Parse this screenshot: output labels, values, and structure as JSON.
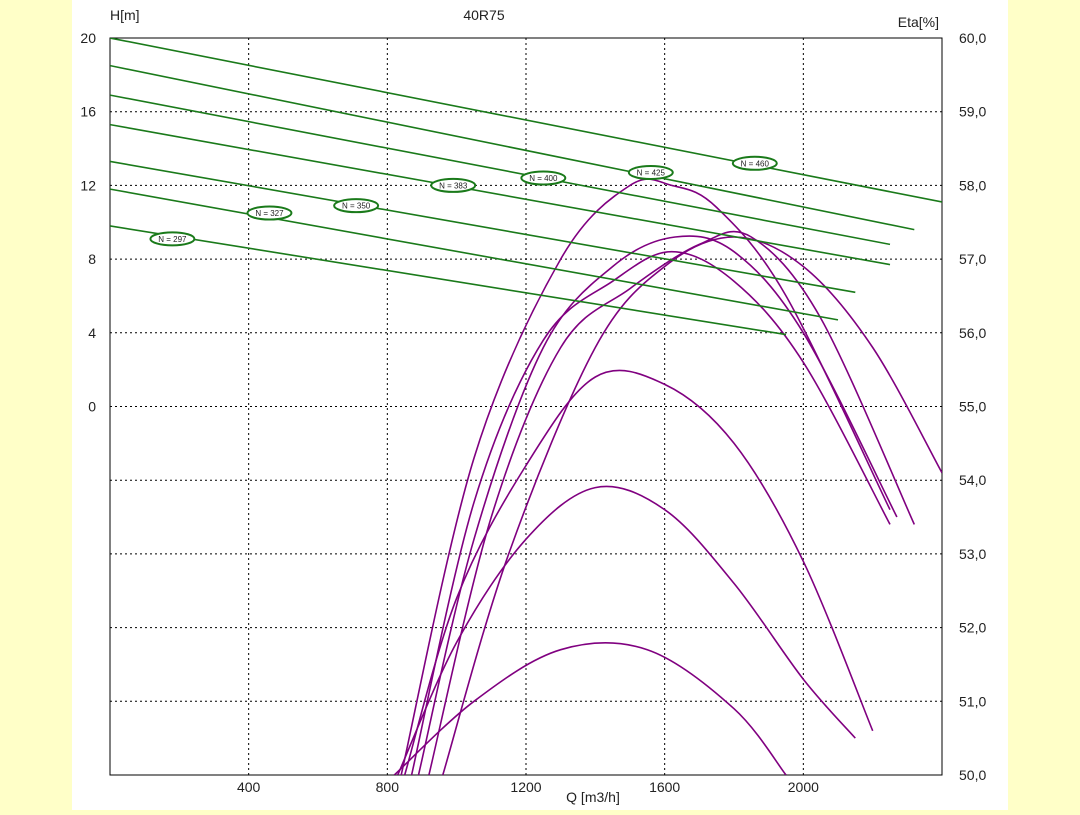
{
  "chart_data": {
    "type": "line",
    "title": "40R75",
    "xlabel": "Q [m3/h]",
    "ylabel_left": "H[m]",
    "ylabel_right": "Eta[%]",
    "xlim": [
      0,
      2400
    ],
    "xticks": [
      400,
      800,
      1200,
      1600,
      2000
    ],
    "ylim_left": [
      -20,
      20
    ],
    "yticks_left": [
      {
        "v": 20,
        "label": "20"
      },
      {
        "v": 16,
        "label": "16"
      },
      {
        "v": 12,
        "label": "12"
      },
      {
        "v": 8,
        "label": "8"
      },
      {
        "v": 4,
        "label": "4"
      },
      {
        "v": 0,
        "label": "0"
      }
    ],
    "ylim_right": [
      50,
      60
    ],
    "yticks_right": [
      "50,0",
      "51,0",
      "52,0",
      "53,0",
      "54,0",
      "55,0",
      "56,0",
      "57,0",
      "58,0",
      "59,0",
      "60,0"
    ],
    "grid": true,
    "head_color": "#1a7a1a",
    "eta_color": "#800080",
    "head_series": [
      {
        "name": "N = 297",
        "x": [
          0,
          1950
        ],
        "y": [
          9.8,
          3.9
        ],
        "label_at": [
          180,
          9.1
        ]
      },
      {
        "name": "N = 327",
        "x": [
          0,
          2100
        ],
        "y": [
          11.8,
          4.7
        ],
        "label_at": [
          460,
          10.5
        ]
      },
      {
        "name": "N = 350",
        "x": [
          0,
          2150
        ],
        "y": [
          13.3,
          6.2
        ],
        "label_at": [
          710,
          10.9
        ]
      },
      {
        "name": "N = 383",
        "x": [
          0,
          2250
        ],
        "y": [
          15.3,
          7.7
        ],
        "label_at": [
          990,
          12.0
        ]
      },
      {
        "name": "N = 400",
        "x": [
          0,
          2250
        ],
        "y": [
          16.9,
          8.8
        ],
        "label_at": [
          1250,
          12.4
        ]
      },
      {
        "name": "N = 425",
        "x": [
          0,
          2320
        ],
        "y": [
          18.5,
          9.6
        ],
        "label_at": [
          1560,
          12.7
        ]
      },
      {
        "name": "N = 460",
        "x": [
          0,
          2400
        ],
        "y": [
          20.0,
          11.1
        ],
        "label_at": [
          1860,
          13.2
        ]
      }
    ],
    "efficiency_series": [
      {
        "x": [
          820,
          1050,
          1300,
          1550,
          1800,
          1950
        ],
        "y": [
          50.0,
          51.0,
          51.7,
          51.7,
          50.9,
          50.0
        ]
      },
      {
        "x": [
          830,
          1000,
          1200,
          1400,
          1600,
          1800,
          2000,
          2150
        ],
        "y": [
          50.0,
          51.8,
          53.2,
          53.9,
          53.6,
          52.6,
          51.3,
          50.5
        ]
      },
      {
        "x": [
          850,
          1000,
          1200,
          1400,
          1600,
          1800,
          2000,
          2200
        ],
        "y": [
          50.0,
          52.4,
          54.2,
          55.4,
          55.3,
          54.5,
          52.9,
          50.6
        ]
      },
      {
        "x": [
          870,
          1050,
          1250,
          1450,
          1620,
          1800,
          2000,
          2250
        ],
        "y": [
          50.0,
          53.7,
          55.9,
          56.7,
          57.1,
          56.7,
          55.6,
          53.4
        ]
      },
      {
        "x": [
          890,
          1050,
          1250,
          1450,
          1630,
          1800,
          2000,
          2270
        ],
        "y": [
          50.0,
          53.2,
          55.8,
          56.9,
          57.3,
          57.1,
          56.0,
          53.5
        ]
      },
      {
        "x": [
          920,
          1100,
          1300,
          1500,
          1700,
          1850,
          2050,
          2320
        ],
        "y": [
          50.0,
          53.5,
          55.8,
          56.6,
          57.2,
          57.3,
          56.2,
          53.4
        ]
      },
      {
        "x": [
          960,
          1150,
          1400,
          1600,
          1800,
          2000,
          2200,
          2400
        ],
        "y": [
          50.0,
          53.0,
          55.8,
          56.9,
          57.3,
          56.9,
          55.8,
          54.1
        ]
      },
      {
        "x": [
          840,
          1050,
          1300,
          1500,
          1620,
          1750,
          1950,
          2250
        ],
        "y": [
          50.0,
          54.3,
          57.0,
          58.0,
          58.0,
          57.7,
          56.5,
          53.6
        ]
      }
    ]
  }
}
